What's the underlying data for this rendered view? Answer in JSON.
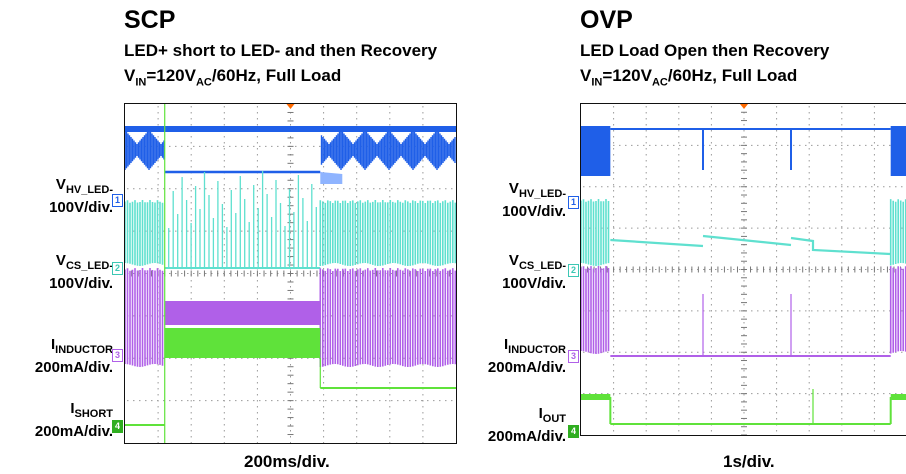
{
  "chart_data": [
    {
      "type": "line",
      "title": "SCP",
      "subtitle": "LED+ short to LED- and then Recovery",
      "condition": {
        "prefix": "V",
        "sub1": "IN",
        "mid": "=120V",
        "sub2": "AC",
        "suffix": "/60Hz, Full Load"
      },
      "time_scale": "200ms/div.",
      "x_divisions": 10,
      "events": {
        "short_start_div": 1.2,
        "recovery_div": 5.9
      },
      "series": [
        {
          "name": "V_HV_LED-",
          "label_main": "V",
          "label_sub": "HV_LED-",
          "scale": "100V/div.",
          "channel": "1",
          "color": "#1f5fe8"
        },
        {
          "name": "V_CS_LED-",
          "label_main": "V",
          "label_sub": "CS_LED-",
          "scale": "100V/div.",
          "channel": "2",
          "color": "#5fe0cf"
        },
        {
          "name": "I_INDUCTOR",
          "label_main": "I",
          "label_sub": "INDUCTOR",
          "scale": "200mA/div.",
          "channel": "3",
          "color": "#b060e8"
        },
        {
          "name": "I_SHORT",
          "label_main": "I",
          "label_sub": "SHORT",
          "scale": "200mA/div.",
          "channel": "4",
          "color": "#5fe23a"
        }
      ]
    },
    {
      "type": "line",
      "title": "OVP",
      "subtitle": "LED Load Open then Recovery",
      "condition": {
        "prefix": "V",
        "sub1": "IN",
        "mid": "=120V",
        "sub2": "AC",
        "suffix": "/60Hz, Full Load"
      },
      "time_scale": "1s/div.",
      "x_divisions": 10,
      "events": {
        "open_start_div": 0.9,
        "recovery_div": 9.5
      },
      "series": [
        {
          "name": "V_HV_LED-",
          "label_main": "V",
          "label_sub": "HV_LED-",
          "scale": "100V/div.",
          "channel": "1",
          "color": "#1f5fe8"
        },
        {
          "name": "V_CS_LED-",
          "label_main": "V",
          "label_sub": "CS_LED-",
          "scale": "100V/div.",
          "channel": "2",
          "color": "#5fe0cf"
        },
        {
          "name": "I_INDUCTOR",
          "label_main": "I",
          "label_sub": "INDUCTOR",
          "scale": "200mA/div.",
          "channel": "3",
          "color": "#b060e8"
        },
        {
          "name": "I_OUT",
          "label_main": "I",
          "label_sub": "OUT",
          "scale": "200mA/div.",
          "channel": "4",
          "color": "#5fe23a"
        }
      ]
    }
  ]
}
